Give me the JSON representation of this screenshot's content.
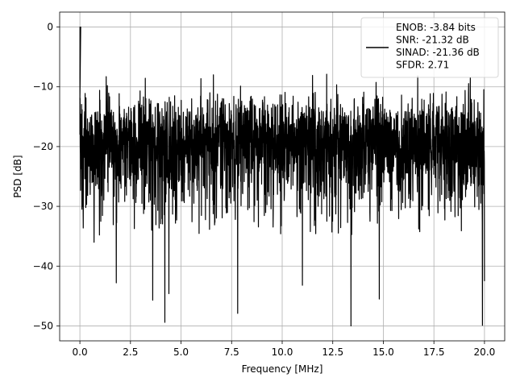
{
  "chart_data": {
    "type": "line",
    "title": "",
    "xlabel": "Frequency [MHz]",
    "ylabel": "PSD [dB]",
    "xlim": [
      -1.0,
      21.0
    ],
    "ylim": [
      -52.5,
      2.5
    ],
    "xticks": [
      0.0,
      2.5,
      5.0,
      7.5,
      10.0,
      12.5,
      15.0,
      17.5,
      20.0
    ],
    "xtick_labels": [
      "0.0",
      "2.5",
      "5.0",
      "7.5",
      "10.0",
      "12.5",
      "15.0",
      "17.5",
      "20.0"
    ],
    "yticks": [
      0,
      -10,
      -20,
      -30,
      -40,
      -50
    ],
    "ytick_labels": [
      "0",
      "−10",
      "−20",
      "−30",
      "−40",
      "−50"
    ],
    "grid": true,
    "legend_position": "top-right",
    "series": [
      {
        "name": "ENOB: -3.84 bits\nSNR: -21.32 dB\nSINAD: -21.36 dB\nSFDR: 2.71",
        "legend_lines": [
          "ENOB: -3.84 bits",
          "SNR: -21.32 dB",
          "SINAD: -21.36 dB",
          "SFDR: 2.71"
        ],
        "color": "#000000",
        "peak": {
          "x": 0.0,
          "y": 0.0
        },
        "baseline_mean_db": -18.0,
        "upper_envelope_db": -9.0,
        "lower_envelope_db": -30.0,
        "notable_minima": [
          {
            "x": 0.7,
            "y": -36.0
          },
          {
            "x": 1.8,
            "y": -42.8
          },
          {
            "x": 3.6,
            "y": -45.7
          },
          {
            "x": 4.2,
            "y": -49.4
          },
          {
            "x": 4.4,
            "y": -44.6
          },
          {
            "x": 7.8,
            "y": -47.9
          },
          {
            "x": 11.0,
            "y": -43.2
          },
          {
            "x": 13.4,
            "y": -50.0
          },
          {
            "x": 14.8,
            "y": -45.5
          },
          {
            "x": 19.9,
            "y": -49.9
          },
          {
            "x": 20.0,
            "y": -42.5
          }
        ],
        "notable_maxima": [
          {
            "x": 0.03,
            "y": 0.0
          },
          {
            "x": 1.3,
            "y": -8.3
          },
          {
            "x": 6.6,
            "y": -8.0
          },
          {
            "x": 11.5,
            "y": -8.1
          },
          {
            "x": 12.2,
            "y": -7.9
          },
          {
            "x": 16.7,
            "y": -8.2
          },
          {
            "x": 19.3,
            "y": -8.5
          }
        ]
      }
    ]
  }
}
